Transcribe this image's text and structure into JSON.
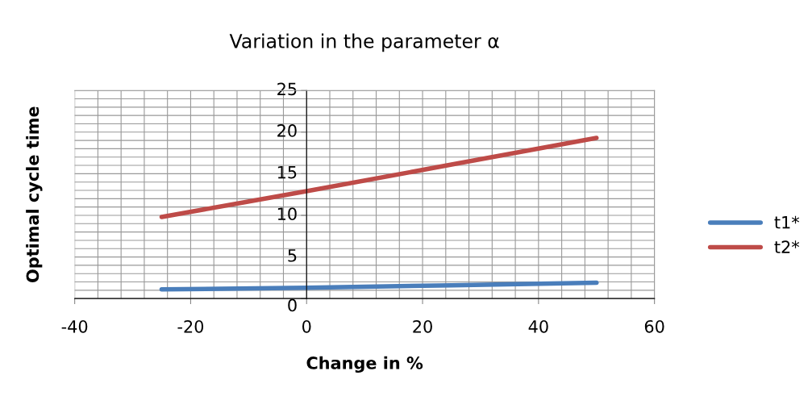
{
  "chart_data": {
    "type": "line",
    "title": "Variation in the parameter α",
    "xlabel": "Change in %",
    "ylabel": "Optimal cycle time",
    "x": [
      -25,
      0,
      25,
      50
    ],
    "series": [
      {
        "name": "t1*",
        "color": "#4a7ebb",
        "values": [
          1.1,
          1.3,
          1.6,
          1.9
        ]
      },
      {
        "name": "t2*",
        "color": "#be4b48",
        "values": [
          9.8,
          12.9,
          16.1,
          19.3
        ]
      }
    ],
    "xlim": [
      -40,
      60
    ],
    "xticks": [
      -40,
      -20,
      0,
      20,
      40,
      60
    ],
    "ylim": [
      0,
      25
    ],
    "yticks": [
      0,
      5,
      10,
      15,
      20,
      25
    ],
    "grid": true,
    "legend": "right",
    "marker": "none",
    "line_style": "solid"
  }
}
